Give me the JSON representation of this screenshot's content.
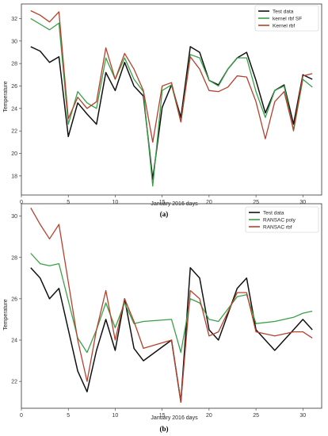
{
  "chart_data": [
    {
      "type": "line",
      "caption": "(a)",
      "xlabel": "January 2016 days",
      "ylabel": "Temperature",
      "xlim": [
        0,
        32
      ],
      "ylim": [
        16.3,
        33.3
      ],
      "xticks": [
        0,
        5,
        10,
        15,
        20,
        25,
        30
      ],
      "yticks": [
        18,
        20,
        22,
        24,
        26,
        28,
        30,
        32
      ],
      "legend_position": "top-right",
      "x": [
        1,
        2,
        3,
        4,
        5,
        6,
        7,
        8,
        9,
        10,
        11,
        12,
        13,
        14,
        15,
        16,
        17,
        18,
        19,
        20,
        21,
        22,
        23,
        24,
        25,
        26,
        27,
        28,
        29,
        30,
        31
      ],
      "series": [
        {
          "name": "Test data",
          "color": "#111111",
          "width": 1.5,
          "values": [
            29.5,
            29.1,
            28.1,
            28.6,
            21.5,
            24.5,
            23.5,
            22.6,
            27.2,
            25.6,
            28.1,
            26.0,
            25.1,
            17.7,
            24.1,
            26.1,
            23.2,
            29.5,
            29.0,
            26.5,
            26.1,
            27.5,
            28.5,
            29.0,
            26.5,
            23.6,
            25.6,
            26.1,
            22.6,
            27.0,
            26.6
          ]
        },
        {
          "name": "kernel rbf SF",
          "color": "#3aa047",
          "width": 1.3,
          "values": [
            32.0,
            31.5,
            31.0,
            31.6,
            22.6,
            25.5,
            24.5,
            24.0,
            28.5,
            26.6,
            28.5,
            26.6,
            25.5,
            17.1,
            25.6,
            26.1,
            22.8,
            28.8,
            28.5,
            26.5,
            26.0,
            27.5,
            28.5,
            28.5,
            25.5,
            23.2,
            25.6,
            26.0,
            22.0,
            26.6,
            25.9
          ]
        },
        {
          "name": "Kernel rbf",
          "color": "#b5412c",
          "width": 1.3,
          "values": [
            32.7,
            32.3,
            31.7,
            32.6,
            23.1,
            25.0,
            24.0,
            24.6,
            29.4,
            26.6,
            28.9,
            27.5,
            25.6,
            21.0,
            26.0,
            26.3,
            22.8,
            28.6,
            27.5,
            25.6,
            25.5,
            25.9,
            26.9,
            26.8,
            24.6,
            21.3,
            24.6,
            25.5,
            22.1,
            26.9,
            27.1
          ]
        }
      ]
    },
    {
      "type": "line",
      "caption": "(b)",
      "xlabel": "January 2016 days",
      "ylabel": "Temperature",
      "xlim": [
        0,
        32
      ],
      "ylim": [
        20.7,
        30.6
      ],
      "xticks": [
        0,
        5,
        10,
        15,
        20,
        25,
        30
      ],
      "yticks": [
        22,
        24,
        26,
        28,
        30
      ],
      "legend_position": "top-right",
      "x": [
        1,
        2,
        3,
        4,
        6,
        7,
        8,
        9,
        10,
        11,
        12,
        13,
        16,
        17,
        18,
        19,
        20,
        21,
        23,
        24,
        25,
        27,
        29,
        30,
        31
      ],
      "series": [
        {
          "name": "Test data",
          "color": "#111111",
          "width": 1.5,
          "values": [
            27.5,
            27.0,
            26.0,
            26.5,
            22.5,
            21.5,
            23.5,
            25.0,
            23.5,
            26.0,
            23.6,
            23.0,
            24.0,
            21.0,
            27.5,
            27.0,
            24.5,
            24.0,
            26.5,
            27.0,
            24.5,
            23.5,
            24.5,
            25.0,
            24.5
          ]
        },
        {
          "name": "RANSAC poly",
          "color": "#3aa047",
          "width": 1.3,
          "values": [
            28.2,
            27.7,
            27.6,
            27.7,
            24.1,
            23.4,
            24.5,
            25.8,
            24.6,
            25.8,
            24.8,
            24.9,
            25.0,
            23.4,
            26.0,
            25.8,
            25.0,
            24.9,
            26.1,
            26.2,
            24.8,
            24.9,
            25.1,
            25.3,
            25.4
          ]
        },
        {
          "name": "RANSAC rbf",
          "color": "#b5412c",
          "width": 1.3,
          "values": [
            30.4,
            29.6,
            28.9,
            29.6,
            24.0,
            22.0,
            24.5,
            26.4,
            24.0,
            26.0,
            24.9,
            23.6,
            24.0,
            21.0,
            26.4,
            26.0,
            24.2,
            24.4,
            26.3,
            26.3,
            24.4,
            24.2,
            24.4,
            24.4,
            24.1
          ]
        }
      ]
    }
  ]
}
